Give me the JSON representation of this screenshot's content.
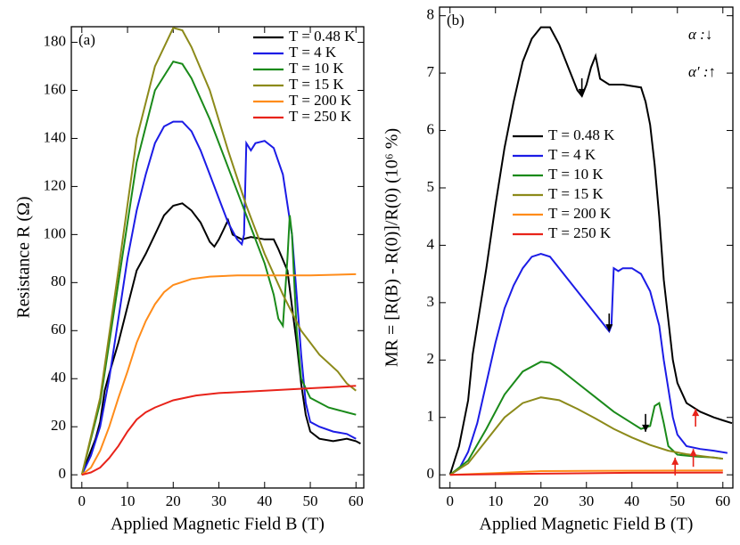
{
  "chart_data": [
    {
      "type": "line",
      "panel_label": "(a)",
      "x_label": "Applied Magnetic Field B (T)",
      "y_label": "Resistance R (Ω)",
      "xlim": [
        -2.3,
        61.7
      ],
      "ylim": [
        -5.5,
        186.5
      ],
      "xticks": [
        0,
        10,
        20,
        30,
        40,
        50,
        60
      ],
      "yticks": [
        0,
        20,
        40,
        60,
        80,
        100,
        120,
        140,
        160,
        180
      ],
      "legend": "upper right",
      "series": [
        {
          "name": "T = 0.48 K",
          "color": "#000000",
          "x": [
            0,
            2,
            3,
            4,
            5,
            6,
            8,
            10,
            12,
            14,
            16,
            18,
            20,
            22,
            24,
            26,
            28,
            29,
            30,
            31,
            32,
            33,
            35,
            37,
            40,
            42,
            43,
            45,
            46,
            47,
            48,
            49,
            50,
            52,
            55,
            58,
            60,
            61
          ],
          "values": [
            0,
            10,
            15,
            22,
            35,
            42,
            55,
            70,
            85,
            92,
            100,
            108,
            112,
            113,
            110,
            105,
            97,
            95,
            98,
            102,
            106,
            100,
            98,
            99,
            98,
            98,
            94,
            85,
            70,
            55,
            38,
            25,
            18,
            15,
            14,
            15,
            14,
            13
          ]
        },
        {
          "name": "T = 4 K",
          "color": "#1c1ce6",
          "x": [
            0,
            2,
            4,
            6,
            8,
            10,
            12,
            14,
            16,
            18,
            20,
            22,
            24,
            26,
            28,
            30,
            32,
            34,
            35,
            35.5,
            36,
            37,
            38,
            40,
            42,
            44,
            46,
            47,
            48,
            49,
            50,
            52,
            55,
            58,
            60
          ],
          "values": [
            0,
            8,
            20,
            40,
            65,
            90,
            110,
            125,
            138,
            145,
            147,
            147,
            143,
            135,
            125,
            115,
            105,
            98,
            96,
            100,
            138,
            135,
            138,
            139,
            136,
            125,
            100,
            75,
            50,
            30,
            22,
            20,
            18,
            17,
            15
          ]
        },
        {
          "name": "T = 10 K",
          "color": "#1a8a1a",
          "x": [
            0,
            4,
            8,
            12,
            16,
            20,
            22,
            24,
            28,
            32,
            36,
            40,
            42,
            43,
            44,
            45,
            45.5,
            46,
            47,
            48,
            50,
            54,
            58,
            60
          ],
          "values": [
            0,
            30,
            80,
            130,
            160,
            172,
            171,
            165,
            148,
            128,
            108,
            88,
            75,
            65,
            62,
            90,
            108,
            100,
            60,
            40,
            32,
            28,
            26,
            25
          ]
        },
        {
          "name": "T = 15 K",
          "color": "#8c8a1a",
          "x": [
            0,
            4,
            8,
            12,
            16,
            20,
            22,
            24,
            28,
            32,
            36,
            40,
            44,
            48,
            52,
            56,
            58,
            60
          ],
          "values": [
            0,
            32,
            85,
            140,
            170,
            186,
            185,
            178,
            160,
            135,
            112,
            92,
            75,
            60,
            50,
            43,
            38,
            35
          ]
        },
        {
          "name": "T = 200 K",
          "color": "#ff8c1a",
          "x": [
            0,
            2,
            4,
            6,
            8,
            10,
            12,
            14,
            16,
            18,
            20,
            24,
            28,
            34,
            40,
            50,
            60
          ],
          "values": [
            0,
            3,
            10,
            20,
            32,
            43,
            55,
            64,
            71,
            76,
            79,
            81.5,
            82.5,
            83,
            83,
            83,
            83.5
          ]
        },
        {
          "name": "T = 250 K",
          "color": "#e8231a",
          "x": [
            0,
            2,
            4,
            6,
            8,
            10,
            12,
            14,
            16,
            20,
            25,
            30,
            40,
            50,
            60
          ],
          "values": [
            0,
            1,
            3,
            7,
            12,
            18,
            23,
            26,
            28,
            31,
            33,
            34,
            35,
            36,
            37
          ]
        }
      ]
    },
    {
      "type": "line",
      "panel_label": "(b)",
      "x_label": "Applied Magnetic Field B (T)",
      "y_label": "MR = [R(B) - R(0)]/R(0) (10⁶ %)",
      "xlim": [
        -2.3,
        62.2
      ],
      "ylim": [
        -0.23,
        8.15
      ],
      "xticks": [
        0,
        10,
        20,
        30,
        40,
        50,
        60
      ],
      "yticks": [
        0,
        1,
        2,
        3,
        4,
        5,
        6,
        7,
        8
      ],
      "legend": "center left",
      "annotations": [
        {
          "text": "α :↓",
          "color": "#000000"
        },
        {
          "text": "α′ :↑",
          "color": "#e8231a"
        }
      ],
      "arrows": [
        {
          "x": 29,
          "y": 6.6,
          "color": "#000000",
          "direction": "down"
        },
        {
          "x": 35,
          "y": 2.5,
          "color": "#000000",
          "direction": "down"
        },
        {
          "x": 43,
          "y": 0.75,
          "color": "#000000",
          "direction": "down"
        },
        {
          "x": 54,
          "y": 1.15,
          "color": "#e8231a",
          "direction": "up"
        },
        {
          "x": 49.5,
          "y": 0.3,
          "color": "#e8231a",
          "direction": "up"
        },
        {
          "x": 53.5,
          "y": 0.45,
          "color": "#e8231a",
          "direction": "up"
        }
      ],
      "series": [
        {
          "name": "T = 0.48 K",
          "color": "#000000",
          "x": [
            0,
            2,
            3,
            4,
            5,
            6,
            8,
            10,
            12,
            14,
            16,
            18,
            20,
            22,
            24,
            26,
            28,
            29,
            30,
            31,
            32,
            33,
            35,
            38,
            42,
            43,
            44,
            45,
            46,
            47,
            48,
            49,
            50,
            52,
            55,
            58,
            60,
            62
          ],
          "values": [
            0,
            0.5,
            0.9,
            1.3,
            2.1,
            2.6,
            3.6,
            4.7,
            5.7,
            6.5,
            7.2,
            7.6,
            7.8,
            7.8,
            7.5,
            7.1,
            6.7,
            6.6,
            6.8,
            7.1,
            7.3,
            6.9,
            6.8,
            6.8,
            6.75,
            6.5,
            6.1,
            5.4,
            4.5,
            3.4,
            2.7,
            2.0,
            1.6,
            1.25,
            1.1,
            1.0,
            0.95,
            0.9
          ]
        },
        {
          "name": "T = 4 K",
          "color": "#1c1ce6",
          "x": [
            0,
            2,
            4,
            6,
            8,
            10,
            12,
            14,
            16,
            18,
            20,
            22,
            24,
            26,
            28,
            30,
            32,
            34,
            35,
            35.5,
            36,
            37,
            38,
            40,
            42,
            44,
            46,
            47,
            48,
            49,
            50,
            52,
            55,
            58,
            61
          ],
          "values": [
            0,
            0.1,
            0.4,
            0.9,
            1.6,
            2.3,
            2.9,
            3.3,
            3.6,
            3.8,
            3.85,
            3.8,
            3.6,
            3.4,
            3.2,
            3.0,
            2.8,
            2.6,
            2.5,
            2.6,
            3.6,
            3.55,
            3.6,
            3.6,
            3.5,
            3.2,
            2.6,
            2.0,
            1.5,
            1.0,
            0.7,
            0.5,
            0.45,
            0.42,
            0.38
          ]
        },
        {
          "name": "T = 10 K",
          "color": "#1a8a1a",
          "x": [
            0,
            4,
            8,
            12,
            16,
            20,
            22,
            24,
            28,
            32,
            36,
            40,
            42,
            44,
            45,
            46,
            47,
            48,
            50,
            54,
            58,
            60
          ],
          "values": [
            0,
            0.25,
            0.8,
            1.4,
            1.8,
            1.97,
            1.95,
            1.85,
            1.6,
            1.35,
            1.1,
            0.9,
            0.8,
            0.85,
            1.2,
            1.25,
            0.9,
            0.5,
            0.35,
            0.32,
            0.3,
            0.28
          ]
        },
        {
          "name": "T = 15 K",
          "color": "#8c8a1a",
          "x": [
            0,
            4,
            8,
            12,
            16,
            20,
            24,
            28,
            32,
            36,
            40,
            44,
            48,
            52,
            56,
            60
          ],
          "values": [
            0,
            0.2,
            0.6,
            1.0,
            1.25,
            1.35,
            1.3,
            1.15,
            0.98,
            0.8,
            0.65,
            0.52,
            0.42,
            0.36,
            0.32,
            0.28
          ]
        },
        {
          "name": "T = 200 K",
          "color": "#ff8c1a",
          "x": [
            0,
            10,
            20,
            30,
            60
          ],
          "values": [
            0,
            0.03,
            0.065,
            0.07,
            0.075
          ]
        },
        {
          "name": "T = 250 K",
          "color": "#e8231a",
          "x": [
            0,
            10,
            20,
            40,
            60
          ],
          "values": [
            0,
            0.01,
            0.02,
            0.035,
            0.04
          ]
        }
      ]
    }
  ]
}
